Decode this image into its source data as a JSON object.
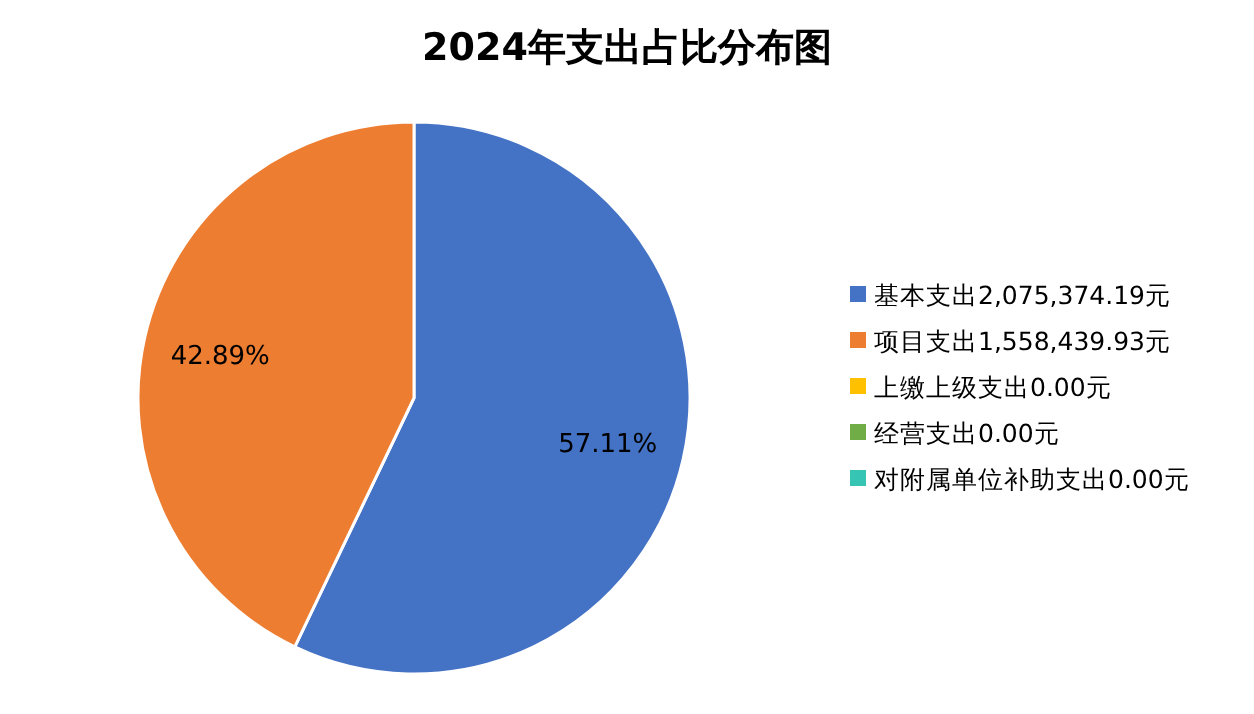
{
  "chart_data": {
    "type": "pie",
    "title": "2024年支出占比分布图",
    "categories": [
      "基本支出2,075,374.19元",
      "项目支出1,558,439.93元",
      "上缴上级支出0.00元",
      "经营支出0.00元",
      "对附属单位补助支出0.00元"
    ],
    "values": [
      57.11,
      42.89,
      0,
      0,
      0
    ],
    "colors": [
      "#4472c4",
      "#ed7d31",
      "#ffc000",
      "#70ad47",
      "#36c5b5"
    ],
    "value_labels": [
      "57.11%",
      "42.89%",
      null,
      null,
      null
    ],
    "legend": "right"
  }
}
